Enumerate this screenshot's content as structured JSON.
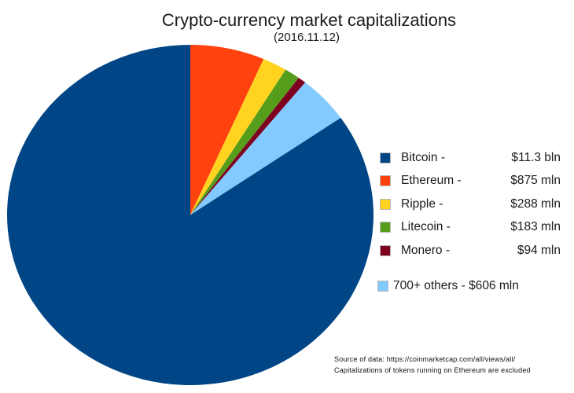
{
  "chart_data": {
    "type": "pie",
    "title": "Crypto-currency market capitalizations",
    "subtitle": "(2016.11.12)",
    "legend_position": "right",
    "series": [
      {
        "name": "Bitcoin",
        "value_mln_usd": 11300,
        "legend_label": "Bitcoin -",
        "legend_amount": "$11.3 bln",
        "color": "#004586"
      },
      {
        "name": "Ethereum",
        "value_mln_usd": 875,
        "legend_label": "Ethereum -",
        "legend_amount": "$875 mln",
        "color": "#FF420E"
      },
      {
        "name": "Ripple",
        "value_mln_usd": 288,
        "legend_label": "Ripple -",
        "legend_amount": "$288 mln",
        "color": "#FFD320"
      },
      {
        "name": "Litecoin",
        "value_mln_usd": 183,
        "legend_label": "Litecoin -",
        "legend_amount": "$183 mln",
        "color": "#579D1C"
      },
      {
        "name": "Monero",
        "value_mln_usd": 94,
        "legend_label": "Monero -",
        "legend_amount": "$94 mln",
        "color": "#7E0021"
      },
      {
        "name": "700+ others",
        "value_mln_usd": 606,
        "legend_label": "700+ others - $606 mln",
        "legend_amount": "",
        "color": "#83CAFF"
      }
    ],
    "pie_order_clockwise_from_top": [
      1,
      2,
      3,
      4,
      5,
      0
    ],
    "annotations": [
      "Source of data: https://coinmarketcap.com/all/views/all/",
      "Capitalizations of tokens running on Ethereum are excluded"
    ]
  }
}
